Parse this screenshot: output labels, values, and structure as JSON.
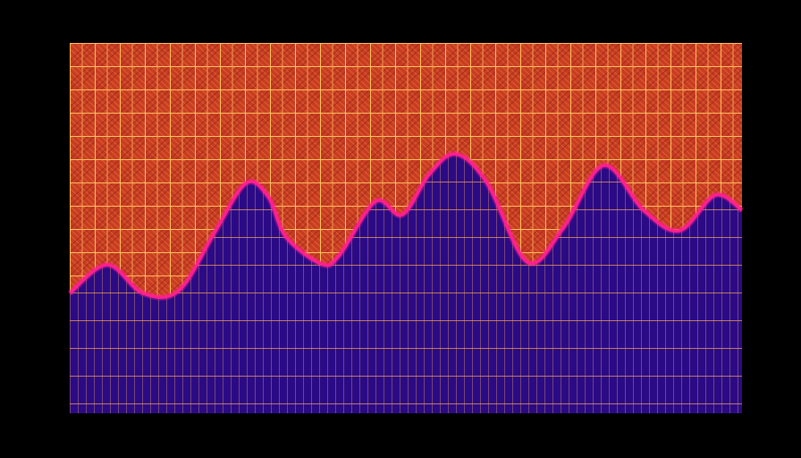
{
  "chart_data": {
    "type": "area",
    "x": [
      0,
      42,
      82,
      122,
      162,
      197,
      222,
      242,
      282,
      302,
      342,
      372,
      402,
      432,
      467,
      512,
      552,
      597,
      642,
      682,
      722,
      752
    ],
    "xlim": [
      0,
      752
    ],
    "ylim": [
      0,
      100
    ],
    "series": [
      {
        "color": "#ff1f8f",
        "fill": "#2b0a86",
        "values": [
          32.4,
          40.1,
          32.4,
          33.1,
          48.8,
          62.1,
          58.5,
          47.6,
          40.3,
          42.8,
          57.2,
          53.6,
          64.5,
          70.0,
          62.1,
          40.8,
          50.0,
          66.9,
          54.8,
          49.3,
          58.9,
          54.8
        ]
      }
    ],
    "background": "#d8492a"
  }
}
